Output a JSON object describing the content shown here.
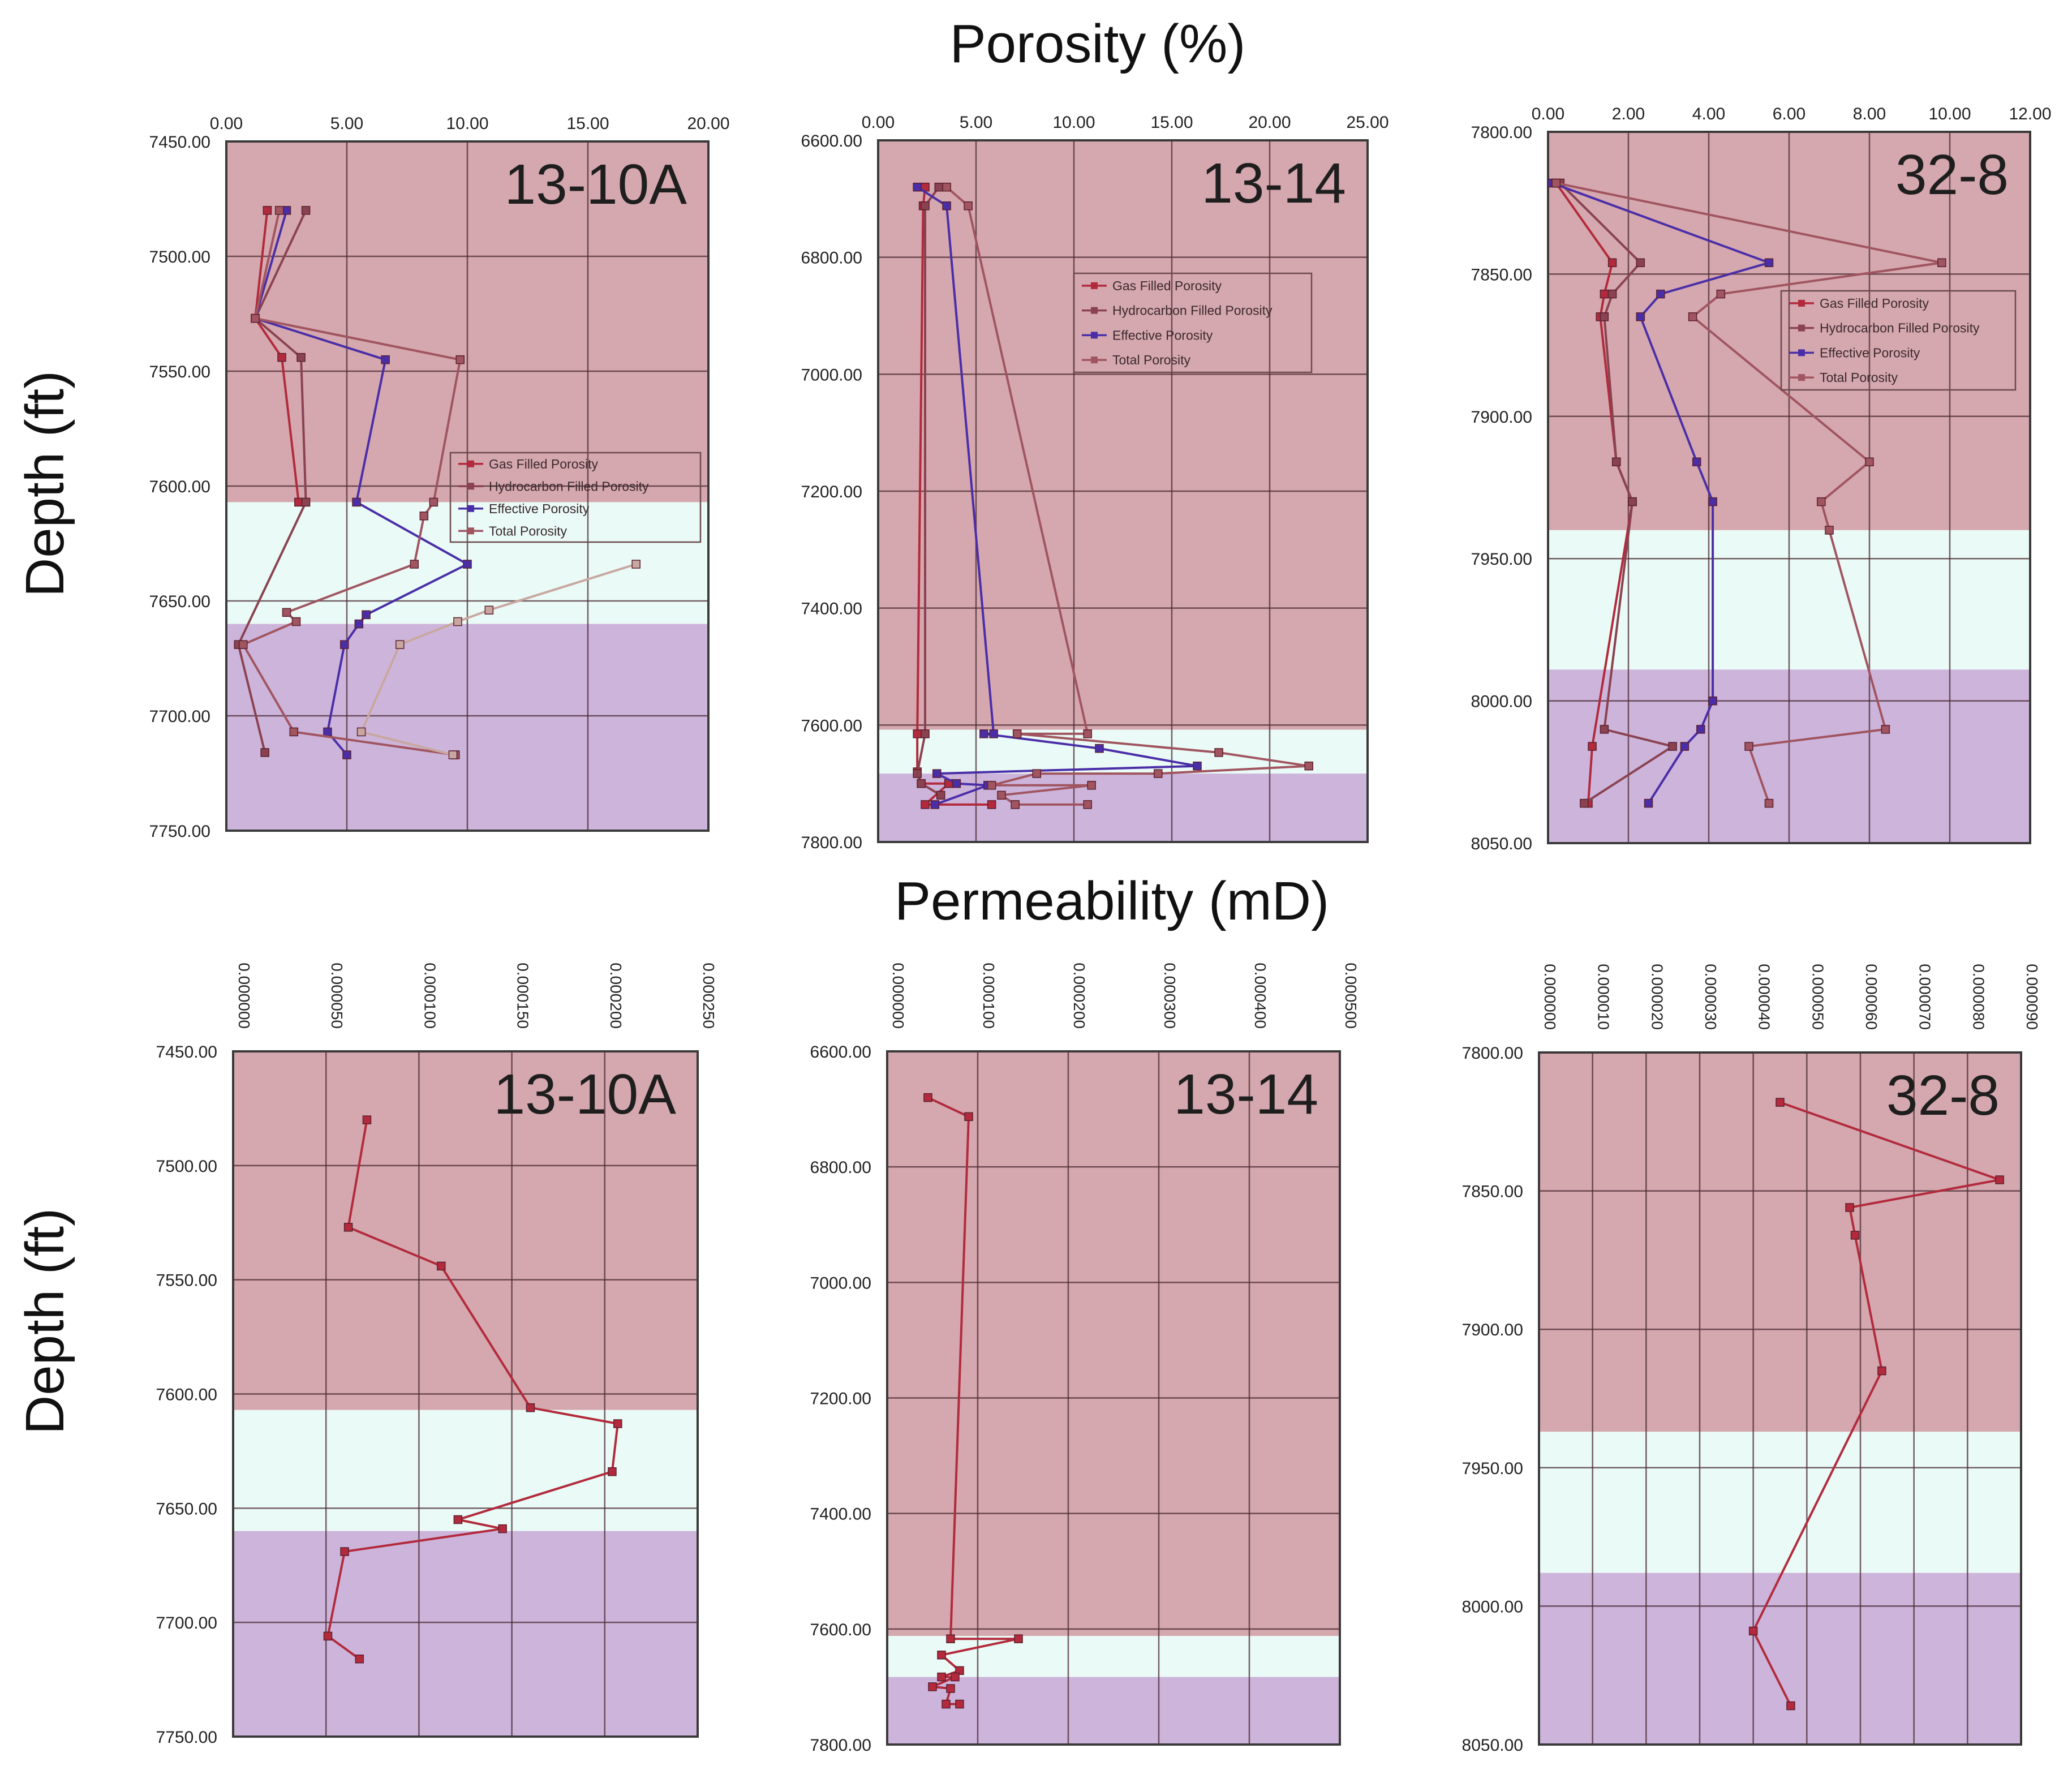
{
  "figure": {
    "porosity_title": "Porosity (%)",
    "permeability_title": "Permeability (mD)",
    "depth_label": "Depth (ft)"
  },
  "colors": {
    "gas_zone": "#d5a7ae",
    "transition_zone": "#eafaf6",
    "water_zone": "#cdb4db",
    "gas_filled": "#b22a3c",
    "hc_filled": "#8a4250",
    "effective": "#4a2ea8",
    "effective_light": "#6b77e0",
    "total": "#a05560",
    "total_light": "#c9a7a0",
    "grid": "#4a2a32"
  },
  "legend_labels": [
    "Gas Filled Porosity",
    "Hydrocarbon Filled Porosity",
    "Effective Porosity",
    "Total Porosity"
  ],
  "chart_data": [
    {
      "type": "line",
      "metric": "porosity",
      "well": "13-10A",
      "title": "13-10A",
      "xlabel": "Porosity (%)",
      "ylabel": "Depth (ft)",
      "xlim": [
        0,
        20
      ],
      "ylim": [
        7450,
        7750
      ],
      "xticks": [
        "0.00",
        "5.00",
        "10.00",
        "15.00",
        "20.00"
      ],
      "yticks": [
        "7450.00",
        "7500.00",
        "7550.00",
        "7600.00",
        "7650.00",
        "7700.00",
        "7750.00"
      ],
      "zones": [
        {
          "name": "gas",
          "from": 7450,
          "to": 7607
        },
        {
          "name": "transition",
          "from": 7607,
          "to": 7660
        },
        {
          "name": "water",
          "from": 7660,
          "to": 7750
        }
      ],
      "legend": {
        "position": "center-right",
        "labels": [
          "Gas Filled Porosity",
          "Hydrocarbon Filled Porosity",
          "Effective Porosity",
          "Total Porosity"
        ]
      },
      "series": [
        {
          "name": "Gas Filled Porosity",
          "points": [
            [
              1.7,
              7480
            ],
            [
              1.2,
              7527
            ],
            [
              2.3,
              7544
            ],
            [
              3.0,
              7607
            ]
          ]
        },
        {
          "name": "Hydrocarbon Filled Porosity",
          "points": [
            [
              3.3,
              7480
            ],
            [
              1.2,
              7527
            ],
            [
              3.1,
              7544
            ],
            [
              3.3,
              7607
            ],
            [
              0.5,
              7669
            ],
            [
              1.6,
              7716
            ]
          ]
        },
        {
          "name": "Effective Porosity",
          "points": [
            [
              2.5,
              7480
            ],
            [
              1.2,
              7527
            ],
            [
              6.6,
              7545
            ],
            [
              5.4,
              7607
            ],
            [
              10.0,
              7634
            ],
            [
              5.8,
              7656
            ],
            [
              5.5,
              7660
            ],
            [
              4.9,
              7669
            ],
            [
              4.2,
              7707
            ],
            [
              5.0,
              7717
            ]
          ]
        },
        {
          "name": "Total Porosity",
          "points": [
            [
              2.2,
              7480
            ],
            [
              1.2,
              7527
            ],
            [
              9.7,
              7545
            ],
            [
              8.6,
              7607
            ],
            [
              8.2,
              7613
            ],
            [
              7.8,
              7634
            ],
            [
              2.5,
              7655
            ],
            [
              2.9,
              7659
            ],
            [
              0.7,
              7669
            ],
            [
              2.8,
              7707
            ],
            [
              9.5,
              7717
            ]
          ]
        },
        {
          "name": "Total Porosity (lower)",
          "points": [
            [
              17.0,
              7634
            ],
            [
              10.9,
              7654
            ],
            [
              9.6,
              7659
            ],
            [
              7.2,
              7669
            ],
            [
              5.6,
              7707
            ],
            [
              9.4,
              7717
            ]
          ]
        }
      ]
    },
    {
      "type": "line",
      "metric": "porosity",
      "well": "13-14",
      "title": "13-14",
      "xlabel": "Porosity (%)",
      "ylabel": "Depth (ft)",
      "xlim": [
        0,
        25
      ],
      "ylim": [
        6600,
        7800
      ],
      "xticks": [
        "0.00",
        "5.00",
        "10.00",
        "15.00",
        "20.00",
        "25.00"
      ],
      "yticks": [
        "6600.00",
        "6800.00",
        "7000.00",
        "7200.00",
        "7400.00",
        "7600.00",
        "7800.00"
      ],
      "zones": [
        {
          "name": "gas",
          "from": 6600,
          "to": 7608
        },
        {
          "name": "transition",
          "from": 7608,
          "to": 7683
        },
        {
          "name": "water",
          "from": 7683,
          "to": 7800
        }
      ],
      "legend": {
        "position": "top-right",
        "labels": [
          "Gas Filled Porosity",
          "Hydrocarbon Filled Porosity",
          "Effective Porosity",
          "Total Porosity"
        ]
      },
      "series": [
        {
          "name": "Gas Filled Porosity",
          "points": [
            [
              2.4,
              6680
            ],
            [
              2.3,
              6712
            ],
            [
              2.0,
              7615
            ],
            [
              2.0,
              7680
            ],
            [
              2.2,
              7700
            ],
            [
              3.6,
              7700
            ],
            [
              2.4,
              7736
            ],
            [
              5.8,
              7736
            ]
          ]
        },
        {
          "name": "Hydrocarbon Filled Porosity",
          "points": [
            [
              3.1,
              6680
            ],
            [
              2.4,
              6712
            ],
            [
              2.4,
              7615
            ],
            [
              2.0,
              7683
            ],
            [
              2.2,
              7700
            ],
            [
              3.2,
              7720
            ]
          ]
        },
        {
          "name": "Effective Porosity",
          "points": [
            [
              2.0,
              6680
            ],
            [
              3.5,
              6712
            ],
            [
              5.9,
              7615
            ],
            [
              5.4,
              7615
            ],
            [
              11.3,
              7640
            ],
            [
              16.3,
              7670
            ],
            [
              3.0,
              7683
            ],
            [
              4.0,
              7700
            ],
            [
              5.6,
              7703
            ],
            [
              2.9,
              7736
            ]
          ]
        },
        {
          "name": "Total Porosity",
          "points": [
            [
              3.5,
              6680
            ],
            [
              4.6,
              6712
            ],
            [
              10.7,
              7615
            ],
            [
              7.1,
              7615
            ],
            [
              17.4,
              7647
            ],
            [
              22.0,
              7670
            ],
            [
              14.3,
              7683
            ],
            [
              8.1,
              7683
            ],
            [
              5.8,
              7703
            ],
            [
              10.9,
              7703
            ],
            [
              6.3,
              7720
            ],
            [
              7.0,
              7736
            ],
            [
              10.7,
              7736
            ]
          ]
        }
      ]
    },
    {
      "type": "line",
      "metric": "porosity",
      "well": "32-8",
      "title": "32-8",
      "xlabel": "Porosity (%)",
      "ylabel": "Depth (ft)",
      "xlim": [
        0,
        12
      ],
      "ylim": [
        7800,
        8050
      ],
      "xticks": [
        "0.00",
        "2.00",
        "4.00",
        "6.00",
        "8.00",
        "10.00",
        "12.00"
      ],
      "yticks": [
        "7800.00",
        "7850.00",
        "7900.00",
        "7950.00",
        "8000.00",
        "8050.00"
      ],
      "zones": [
        {
          "name": "gas",
          "from": 7800,
          "to": 7940
        },
        {
          "name": "transition",
          "from": 7940,
          "to": 7989
        },
        {
          "name": "water",
          "from": 7989,
          "to": 8050
        }
      ],
      "legend": {
        "position": "top-right",
        "labels": [
          "Gas Filled Porosity",
          "Hydrocarbon Filled Porosity",
          "Effective Porosity",
          "Total Porosity"
        ]
      },
      "series": [
        {
          "name": "Gas Filled Porosity",
          "points": [
            [
              0.2,
              7818
            ],
            [
              1.6,
              7846
            ],
            [
              1.4,
              7857
            ],
            [
              1.3,
              7865
            ],
            [
              1.7,
              7916
            ],
            [
              2.1,
              7930
            ],
            [
              1.1,
              8016
            ],
            [
              1.0,
              8036
            ]
          ]
        },
        {
          "name": "Hydrocarbon Filled Porosity",
          "points": [
            [
              0.3,
              7818
            ],
            [
              2.3,
              7846
            ],
            [
              1.6,
              7857
            ],
            [
              1.4,
              7865
            ],
            [
              1.7,
              7916
            ],
            [
              2.1,
              7930
            ],
            [
              1.4,
              8010
            ],
            [
              3.1,
              8016
            ],
            [
              0.9,
              8036
            ]
          ]
        },
        {
          "name": "Effective Porosity",
          "points": [
            [
              0.1,
              7818
            ],
            [
              5.5,
              7846
            ],
            [
              2.8,
              7857
            ],
            [
              2.3,
              7865
            ],
            [
              3.7,
              7916
            ],
            [
              4.1,
              7930
            ],
            [
              4.1,
              8000
            ],
            [
              3.8,
              8010
            ],
            [
              3.4,
              8016
            ],
            [
              2.5,
              8036
            ]
          ]
        },
        {
          "name": "Total Porosity",
          "points": [
            [
              0.2,
              7818
            ],
            [
              9.8,
              7846
            ],
            [
              4.3,
              7857
            ],
            [
              3.6,
              7865
            ],
            [
              8.0,
              7916
            ],
            [
              6.8,
              7930
            ],
            [
              7.0,
              7940
            ],
            [
              8.4,
              8010
            ],
            [
              5.0,
              8016
            ],
            [
              5.5,
              8036
            ]
          ]
        }
      ]
    },
    {
      "type": "line",
      "metric": "permeability",
      "well": "13-10A",
      "title": "13-10A",
      "xlabel": "Permeability (mD)",
      "ylabel": "Depth (ft)",
      "xlim": [
        0,
        0.00025
      ],
      "ylim": [
        7450,
        7750
      ],
      "xticks": [
        "0.000000",
        "0.000050",
        "0.000100",
        "0.000150",
        "0.000200",
        "0.000250"
      ],
      "yticks": [
        "7450.00",
        "7500.00",
        "7550.00",
        "7600.00",
        "7650.00",
        "7700.00",
        "7750.00"
      ],
      "zones": [
        {
          "name": "gas",
          "from": 7450,
          "to": 7607
        },
        {
          "name": "transition",
          "from": 7607,
          "to": 7660
        },
        {
          "name": "water",
          "from": 7660,
          "to": 7750
        }
      ],
      "series": [
        {
          "name": "Permeability",
          "points": [
            [
              7.2e-05,
              7480
            ],
            [
              6.2e-05,
              7527
            ],
            [
              0.000112,
              7544
            ],
            [
              0.00016,
              7606
            ],
            [
              0.000207,
              7613
            ],
            [
              0.000204,
              7634
            ],
            [
              0.000121,
              7655
            ],
            [
              0.000145,
              7659
            ],
            [
              6e-05,
              7669
            ],
            [
              5.1e-05,
              7706
            ],
            [
              6.8e-05,
              7716
            ]
          ]
        }
      ]
    },
    {
      "type": "line",
      "metric": "permeability",
      "well": "13-14",
      "title": "13-14",
      "xlabel": "Permeability (mD)",
      "ylabel": "Depth (ft)",
      "xlim": [
        0,
        0.0005
      ],
      "ylim": [
        6600,
        7800
      ],
      "xticks": [
        "0.000000",
        "0.000100",
        "0.000200",
        "0.000300",
        "0.000400",
        "0.000500"
      ],
      "yticks": [
        "6600.00",
        "6800.00",
        "7000.00",
        "7200.00",
        "7400.00",
        "7600.00",
        "7800.00"
      ],
      "zones": [
        {
          "name": "gas",
          "from": 6600,
          "to": 7612
        },
        {
          "name": "transition",
          "from": 7612,
          "to": 7683
        },
        {
          "name": "water",
          "from": 7683,
          "to": 7800
        }
      ],
      "series": [
        {
          "name": "Permeability",
          "points": [
            [
              4.5e-05,
              6680
            ],
            [
              9e-05,
              6713
            ],
            [
              7e-05,
              7617
            ],
            [
              0.000145,
              7617
            ],
            [
              6e-05,
              7645
            ],
            [
              8e-05,
              7672
            ],
            [
              6e-05,
              7683
            ],
            [
              7.5e-05,
              7683
            ],
            [
              5e-05,
              7700
            ],
            [
              7e-05,
              7703
            ],
            [
              6.5e-05,
              7730
            ],
            [
              8e-05,
              7730
            ]
          ]
        }
      ]
    },
    {
      "type": "line",
      "metric": "permeability",
      "well": "32-8",
      "title": "32-8",
      "xlabel": "Permeability (mD)",
      "ylabel": "Depth (ft)",
      "xlim": [
        0,
        9e-05
      ],
      "ylim": [
        7800,
        8050
      ],
      "xticks": [
        "0.000000",
        "0.000010",
        "0.000020",
        "0.000030",
        "0.000040",
        "0.000050",
        "0.000060",
        "0.000070",
        "0.000080",
        "0.000090"
      ],
      "yticks": [
        "7800.00",
        "7850.00",
        "7900.00",
        "7950.00",
        "8000.00",
        "8050.00"
      ],
      "zones": [
        {
          "name": "gas",
          "from": 7800,
          "to": 7937
        },
        {
          "name": "transition",
          "from": 7937,
          "to": 7988
        },
        {
          "name": "water",
          "from": 7988,
          "to": 8050
        }
      ],
      "series": [
        {
          "name": "Permeability",
          "points": [
            [
              4.5e-05,
              7818
            ],
            [
              8.6e-05,
              7846
            ],
            [
              5.8e-05,
              7856
            ],
            [
              5.9e-05,
              7866
            ],
            [
              6.4e-05,
              7915
            ],
            [
              4e-05,
              8009
            ],
            [
              4.7e-05,
              8036
            ]
          ]
        }
      ]
    }
  ]
}
